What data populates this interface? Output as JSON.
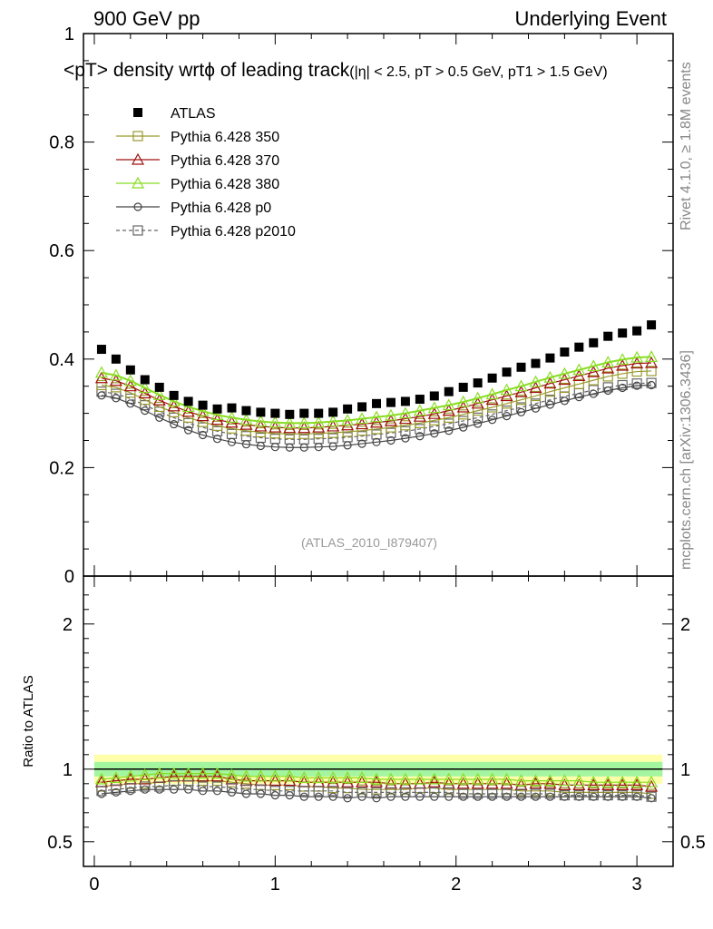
{
  "header": {
    "left": "900 GeV pp",
    "right": "Underlying Event"
  },
  "title": {
    "main": "<p_T> density wrtϕ of leading track",
    "sub": "(|η| < 2.5, p_T > 0.5 GeV, p_T1 > 1.5 GeV)",
    "display_main": "<pT> density wrtϕ of leading track",
    "display_sub": "(|η| < 2.5, pT > 0.5 GeV, pT1 > 1.5 GeV)"
  },
  "side_labels": {
    "rivet": "Rivet 4.1.0, ≥ 1.8M events",
    "mcplots": "mcplots.cern.ch [arXiv:1306.3436]"
  },
  "watermark": "(ATLAS_2010_I879407)",
  "colors": {
    "atlas": "#000000",
    "py350": "#9a9a2e",
    "py370": "#a01010",
    "py380": "#88dd22",
    "p0": "#444444",
    "p2010": "#666666",
    "band_outer": "#ffff66",
    "band_inner": "#66ee99"
  },
  "chart_data": [
    {
      "type": "scatter",
      "panel": "main",
      "title": "<p_T> density wrtϕ of leading track (|η| < 2.5, p_T > 0.5 GeV, p_T1 > 1.5 GeV)",
      "xlabel": "",
      "ylabel": "",
      "xlim": [
        -0.06,
        3.2
      ],
      "ylim": [
        0,
        1.0
      ],
      "yticks": [
        "0",
        "0.2",
        "0.4",
        "0.6",
        "0.8",
        "1"
      ],
      "xticks": [
        "0",
        "1",
        "2",
        "3"
      ],
      "x": [
        0.0393,
        0.0785,
        0.1178,
        0.1571,
        0.1963,
        0.2356,
        0.2749,
        0.3142,
        0.3534,
        0.3927,
        0.432,
        0.4712,
        0.5105,
        0.5498,
        0.589,
        0.6283,
        0.6676,
        0.7069,
        0.7461,
        0.7854,
        0.8247,
        0.8639,
        0.9032,
        0.9425,
        0.9817,
        1.021,
        1.0603,
        1.0996,
        1.1388,
        1.1781,
        1.2174,
        1.2566,
        1.2959,
        1.3352,
        1.3744,
        1.4137,
        1.453,
        1.4923,
        1.5315,
        1.5708,
        1.6101,
        1.6493,
        1.6886,
        1.7279,
        1.7671,
        1.8064,
        1.8457,
        1.885,
        1.9242,
        1.9635,
        2.0028,
        2.042,
        2.0813,
        2.1206,
        2.1598,
        2.1991,
        2.2384,
        2.2777,
        2.3169,
        2.3562,
        2.3955,
        2.4347,
        2.474,
        2.5133,
        2.5525,
        2.5918,
        2.6311,
        2.6704,
        2.7096,
        2.7489,
        2.7882,
        2.8274,
        2.8667,
        2.906,
        2.9452,
        2.9845,
        3.0238,
        3.063,
        3.1023,
        3.1416
      ],
      "legend_position": "top-left",
      "series": [
        {
          "name": "ATLAS",
          "marker": "filled-square",
          "color": "#000000",
          "x": [
            0.04,
            0.12,
            0.2,
            0.28,
            0.36,
            0.44,
            0.52,
            0.6,
            0.68,
            0.76,
            0.84,
            0.92,
            1.0,
            1.08,
            1.16,
            1.24,
            1.32,
            1.4,
            1.48,
            1.56,
            1.64,
            1.72,
            1.8,
            1.88,
            1.96,
            2.04,
            2.12,
            2.2,
            2.28,
            2.36,
            2.44,
            2.52,
            2.6,
            2.68,
            2.76,
            2.84,
            2.92,
            3.0,
            3.08
          ],
          "values": [
            0.418,
            0.4,
            0.38,
            0.362,
            0.348,
            0.333,
            0.322,
            0.315,
            0.308,
            0.31,
            0.305,
            0.302,
            0.3,
            0.298,
            0.3,
            0.3,
            0.302,
            0.308,
            0.312,
            0.318,
            0.32,
            0.322,
            0.326,
            0.332,
            0.34,
            0.348,
            0.356,
            0.365,
            0.376,
            0.385,
            0.392,
            0.402,
            0.413,
            0.422,
            0.43,
            0.442,
            0.448,
            0.452,
            0.463
          ]
        },
        {
          "name": "Pythia 6.428 350",
          "marker": "open-square",
          "line": "solid",
          "color": "#9a9a2e",
          "x": [
            0.04,
            0.12,
            0.2,
            0.28,
            0.36,
            0.44,
            0.52,
            0.6,
            0.68,
            0.76,
            0.84,
            0.92,
            1.0,
            1.08,
            1.16,
            1.24,
            1.32,
            1.4,
            1.48,
            1.56,
            1.64,
            1.72,
            1.8,
            1.88,
            1.96,
            2.04,
            2.12,
            2.2,
            2.28,
            2.36,
            2.44,
            2.52,
            2.6,
            2.68,
            2.76,
            2.84,
            2.92,
            3.0,
            3.08
          ],
          "values": [
            0.352,
            0.348,
            0.338,
            0.325,
            0.312,
            0.302,
            0.292,
            0.284,
            0.277,
            0.272,
            0.268,
            0.265,
            0.263,
            0.262,
            0.262,
            0.263,
            0.264,
            0.266,
            0.268,
            0.271,
            0.274,
            0.278,
            0.282,
            0.287,
            0.292,
            0.298,
            0.305,
            0.311,
            0.318,
            0.325,
            0.332,
            0.34,
            0.347,
            0.354,
            0.361,
            0.368,
            0.373,
            0.377,
            0.378
          ]
        },
        {
          "name": "Pythia 6.428 370",
          "marker": "open-triangle",
          "line": "solid",
          "color": "#a01010",
          "x": [
            0.04,
            0.12,
            0.2,
            0.28,
            0.36,
            0.44,
            0.52,
            0.6,
            0.68,
            0.76,
            0.84,
            0.92,
            1.0,
            1.08,
            1.16,
            1.24,
            1.32,
            1.4,
            1.48,
            1.56,
            1.64,
            1.72,
            1.8,
            1.88,
            1.96,
            2.04,
            2.12,
            2.2,
            2.28,
            2.36,
            2.44,
            2.52,
            2.6,
            2.68,
            2.76,
            2.84,
            2.92,
            3.0,
            3.08
          ],
          "values": [
            0.365,
            0.36,
            0.35,
            0.337,
            0.324,
            0.313,
            0.303,
            0.295,
            0.288,
            0.283,
            0.279,
            0.276,
            0.274,
            0.273,
            0.273,
            0.274,
            0.276,
            0.278,
            0.28,
            0.283,
            0.286,
            0.29,
            0.294,
            0.299,
            0.305,
            0.311,
            0.318,
            0.325,
            0.332,
            0.339,
            0.347,
            0.355,
            0.362,
            0.369,
            0.376,
            0.383,
            0.388,
            0.392,
            0.393
          ]
        },
        {
          "name": "Pythia 6.428 380",
          "marker": "open-triangle",
          "line": "solid",
          "color": "#88dd22",
          "x": [
            0.04,
            0.12,
            0.2,
            0.28,
            0.36,
            0.44,
            0.52,
            0.6,
            0.68,
            0.76,
            0.84,
            0.92,
            1.0,
            1.08,
            1.16,
            1.24,
            1.32,
            1.4,
            1.48,
            1.56,
            1.64,
            1.72,
            1.8,
            1.88,
            1.96,
            2.04,
            2.12,
            2.2,
            2.28,
            2.36,
            2.44,
            2.52,
            2.6,
            2.68,
            2.76,
            2.84,
            2.92,
            3.0,
            3.08
          ],
          "values": [
            0.375,
            0.37,
            0.36,
            0.347,
            0.334,
            0.322,
            0.312,
            0.304,
            0.297,
            0.292,
            0.288,
            0.285,
            0.283,
            0.282,
            0.282,
            0.283,
            0.285,
            0.287,
            0.29,
            0.293,
            0.296,
            0.3,
            0.305,
            0.31,
            0.315,
            0.321,
            0.328,
            0.335,
            0.343,
            0.35,
            0.358,
            0.366,
            0.373,
            0.38,
            0.387,
            0.394,
            0.399,
            0.403,
            0.404
          ]
        },
        {
          "name": "Pythia 6.428 p0",
          "marker": "open-circle",
          "line": "solid",
          "color": "#444444",
          "x": [
            0.04,
            0.12,
            0.2,
            0.28,
            0.36,
            0.44,
            0.52,
            0.6,
            0.68,
            0.76,
            0.84,
            0.92,
            1.0,
            1.08,
            1.16,
            1.24,
            1.32,
            1.4,
            1.48,
            1.56,
            1.64,
            1.72,
            1.8,
            1.88,
            1.96,
            2.04,
            2.12,
            2.2,
            2.28,
            2.36,
            2.44,
            2.52,
            2.6,
            2.68,
            2.76,
            2.84,
            2.92,
            3.0,
            3.08
          ],
          "values": [
            0.333,
            0.328,
            0.318,
            0.305,
            0.292,
            0.28,
            0.269,
            0.26,
            0.253,
            0.247,
            0.243,
            0.24,
            0.238,
            0.237,
            0.237,
            0.238,
            0.239,
            0.241,
            0.244,
            0.247,
            0.25,
            0.254,
            0.258,
            0.263,
            0.268,
            0.274,
            0.281,
            0.288,
            0.295,
            0.302,
            0.309,
            0.316,
            0.323,
            0.33,
            0.336,
            0.342,
            0.347,
            0.351,
            0.352
          ]
        },
        {
          "name": "Pythia 6.428 p2010",
          "marker": "open-square",
          "line": "dashed",
          "color": "#666666",
          "x": [
            0.04,
            0.12,
            0.2,
            0.28,
            0.36,
            0.44,
            0.52,
            0.6,
            0.68,
            0.76,
            0.84,
            0.92,
            1.0,
            1.08,
            1.16,
            1.24,
            1.32,
            1.4,
            1.48,
            1.56,
            1.64,
            1.72,
            1.8,
            1.88,
            1.96,
            2.04,
            2.12,
            2.2,
            2.28,
            2.36,
            2.44,
            2.52,
            2.6,
            2.68,
            2.76,
            2.84,
            2.92,
            3.0,
            3.08
          ],
          "values": [
            0.34,
            0.336,
            0.327,
            0.315,
            0.303,
            0.292,
            0.282,
            0.274,
            0.267,
            0.262,
            0.258,
            0.255,
            0.253,
            0.252,
            0.252,
            0.253,
            0.254,
            0.256,
            0.258,
            0.261,
            0.264,
            0.267,
            0.271,
            0.276,
            0.281,
            0.286,
            0.292,
            0.298,
            0.305,
            0.311,
            0.318,
            0.325,
            0.331,
            0.337,
            0.343,
            0.348,
            0.352,
            0.355,
            0.356
          ]
        }
      ]
    },
    {
      "type": "scatter",
      "panel": "ratio",
      "ylabel": "Ratio to ATLAS",
      "xlim": [
        -0.06,
        3.2
      ],
      "ylim": [
        0.33,
        2.33
      ],
      "yticks": [
        "0.5",
        "1",
        "2"
      ],
      "xticks": [
        "0",
        "1",
        "2",
        "3"
      ],
      "band": {
        "outer": 0.1,
        "inner": 0.05
      },
      "series": [
        {
          "name": "Pythia 6.428 350",
          "values": [
            0.88,
            0.89,
            0.9,
            0.9,
            0.91,
            0.92,
            0.92,
            0.92,
            0.92,
            0.91,
            0.9,
            0.89,
            0.89,
            0.89,
            0.88,
            0.88,
            0.87,
            0.87,
            0.86,
            0.86,
            0.86,
            0.86,
            0.87,
            0.87,
            0.86,
            0.86,
            0.86,
            0.86,
            0.86,
            0.85,
            0.85,
            0.85,
            0.84,
            0.84,
            0.84,
            0.84,
            0.84,
            0.84,
            0.83
          ]
        },
        {
          "name": "Pythia 6.428 370",
          "values": [
            0.91,
            0.92,
            0.93,
            0.93,
            0.94,
            0.95,
            0.95,
            0.95,
            0.95,
            0.93,
            0.92,
            0.92,
            0.92,
            0.92,
            0.91,
            0.91,
            0.91,
            0.91,
            0.91,
            0.91,
            0.9,
            0.9,
            0.9,
            0.91,
            0.9,
            0.9,
            0.9,
            0.9,
            0.9,
            0.89,
            0.9,
            0.9,
            0.89,
            0.89,
            0.89,
            0.89,
            0.89,
            0.89,
            0.88
          ]
        },
        {
          "name": "Pythia 6.428 380",
          "values": [
            0.93,
            0.94,
            0.95,
            0.96,
            0.97,
            0.97,
            0.97,
            0.97,
            0.97,
            0.96,
            0.95,
            0.95,
            0.95,
            0.95,
            0.94,
            0.94,
            0.94,
            0.94,
            0.94,
            0.93,
            0.93,
            0.93,
            0.93,
            0.93,
            0.93,
            0.93,
            0.93,
            0.93,
            0.93,
            0.92,
            0.92,
            0.92,
            0.92,
            0.92,
            0.91,
            0.91,
            0.91,
            0.91,
            0.91
          ]
        },
        {
          "name": "Pythia 6.428 p0",
          "values": [
            0.83,
            0.84,
            0.85,
            0.86,
            0.86,
            0.86,
            0.86,
            0.85,
            0.85,
            0.84,
            0.83,
            0.83,
            0.82,
            0.82,
            0.81,
            0.81,
            0.81,
            0.8,
            0.81,
            0.8,
            0.81,
            0.81,
            0.81,
            0.81,
            0.81,
            0.81,
            0.81,
            0.81,
            0.81,
            0.81,
            0.81,
            0.81,
            0.81,
            0.81,
            0.81,
            0.81,
            0.81,
            0.81,
            0.8
          ]
        },
        {
          "name": "Pythia 6.428 p2010",
          "values": [
            0.85,
            0.86,
            0.87,
            0.88,
            0.88,
            0.89,
            0.89,
            0.88,
            0.88,
            0.87,
            0.86,
            0.86,
            0.85,
            0.85,
            0.85,
            0.85,
            0.85,
            0.84,
            0.84,
            0.84,
            0.84,
            0.84,
            0.84,
            0.84,
            0.84,
            0.83,
            0.83,
            0.83,
            0.83,
            0.83,
            0.83,
            0.83,
            0.82,
            0.82,
            0.82,
            0.82,
            0.82,
            0.82,
            0.81
          ]
        }
      ]
    }
  ]
}
